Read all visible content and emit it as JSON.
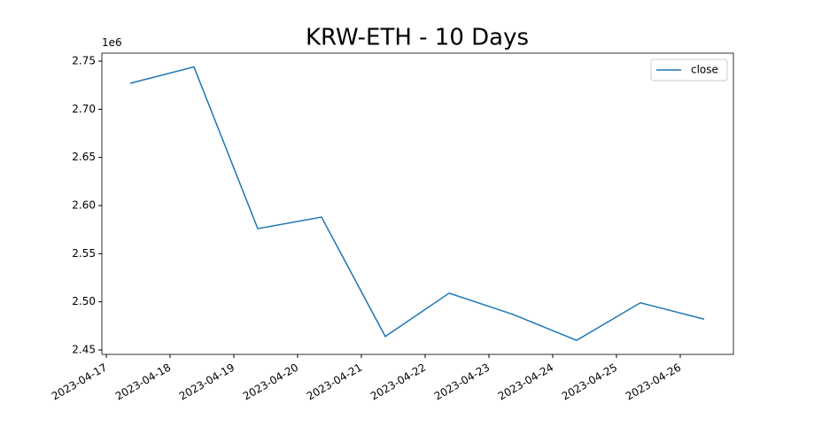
{
  "chart_data": {
    "type": "line",
    "title": "KRW-ETH - 10 Days",
    "y_offset_label": "1e6",
    "x": [
      "2023-04-17T09:00",
      "2023-04-18T09:00",
      "2023-04-19T09:00",
      "2023-04-20T09:00",
      "2023-04-21T09:00",
      "2023-04-22T09:00",
      "2023-04-23T09:00",
      "2023-04-24T09:00",
      "2023-04-25T09:00",
      "2023-04-26T09:00"
    ],
    "series": [
      {
        "name": "close",
        "color": "#1f77b4",
        "values": [
          2727000,
          2744000,
          2576000,
          2588000,
          2464000,
          2509000,
          2487000,
          2460000,
          2499000,
          2482000
        ]
      }
    ],
    "xlim": [
      "2023-04-16T22:20",
      "2023-04-26T20:00"
    ],
    "xticks": [
      "2023-04-17",
      "2023-04-18",
      "2023-04-19",
      "2023-04-20",
      "2023-04-21",
      "2023-04-22",
      "2023-04-23",
      "2023-04-24",
      "2023-04-25",
      "2023-04-26"
    ],
    "ylim": [
      2445400,
      2758300
    ],
    "yticks": [
      {
        "value": 2450000,
        "label": "2.45"
      },
      {
        "value": 2500000,
        "label": "2.50"
      },
      {
        "value": 2550000,
        "label": "2.55"
      },
      {
        "value": 2600000,
        "label": "2.60"
      },
      {
        "value": 2650000,
        "label": "2.65"
      },
      {
        "value": 2700000,
        "label": "2.70"
      },
      {
        "value": 2750000,
        "label": "2.75"
      }
    ],
    "legend": "upper right"
  }
}
